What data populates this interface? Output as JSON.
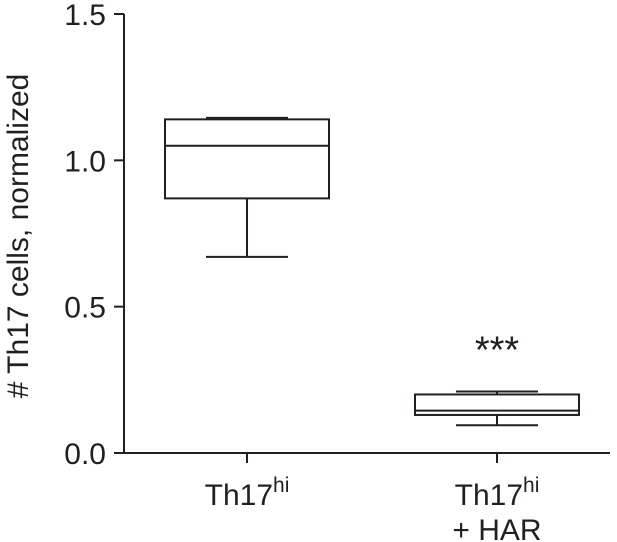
{
  "chart_data": {
    "type": "box",
    "ylabel": "# Th17 cells, normalized",
    "ylim": [
      0,
      1.5
    ],
    "yticks": [
      {
        "value": 0.0,
        "label": "0.0"
      },
      {
        "value": 0.5,
        "label": "0.5"
      },
      {
        "value": 1.0,
        "label": "1.0"
      },
      {
        "value": 1.5,
        "label": "1.5"
      }
    ],
    "categories": [
      {
        "base": "Th17",
        "sup": "hi",
        "line2": ""
      },
      {
        "base": "Th17",
        "sup": "hi",
        "line2": "+ HAR"
      }
    ],
    "boxes": [
      {
        "whisker_low": 0.67,
        "q1": 0.87,
        "median": 1.05,
        "q3": 1.14,
        "whisker_high": 1.145
      },
      {
        "whisker_low": 0.095,
        "q1": 0.13,
        "median": 0.145,
        "q3": 0.2,
        "whisker_high": 0.21
      }
    ],
    "annotations": [
      {
        "category_index": 1,
        "text": "***",
        "y": 0.37
      }
    ],
    "grid": false,
    "legend": "none"
  }
}
